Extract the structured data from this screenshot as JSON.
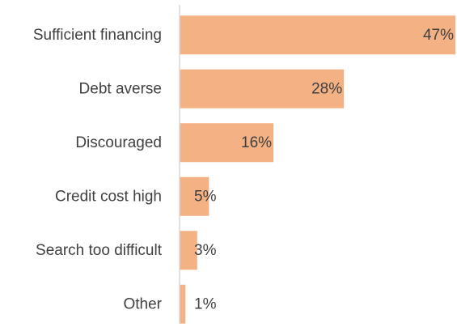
{
  "chart_data": {
    "type": "bar",
    "orientation": "horizontal",
    "categories": [
      "Sufficient financing",
      "Debt averse",
      "Discouraged",
      "Credit cost high",
      "Search too difficult",
      "Other"
    ],
    "values": [
      47,
      28,
      16,
      5,
      3,
      1
    ],
    "data_labels": [
      "47%",
      "28%",
      "16%",
      "5%",
      "3%",
      "1%"
    ],
    "title": "",
    "xlabel": "",
    "ylabel": "",
    "xlim": [
      0,
      47
    ],
    "grid": false,
    "legend": "none",
    "colors": {
      "bar": "#F4B183",
      "axis": "#D9D9D9",
      "text": "#404040"
    }
  }
}
